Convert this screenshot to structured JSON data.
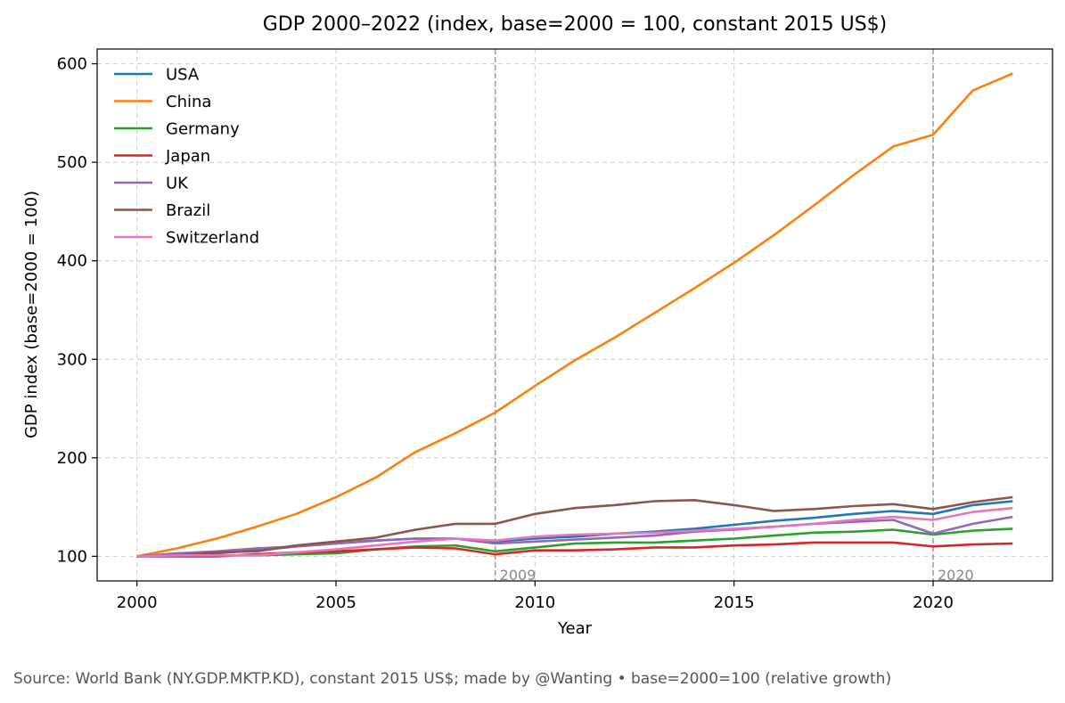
{
  "chart_data": {
    "type": "line",
    "title": "GDP 2000–2022 (index, base=2000 = 100, constant 2015 US$)",
    "xlabel": "Year",
    "ylabel": "GDP index (base=2000 = 100)",
    "xlim": [
      1999,
      2023
    ],
    "ylim": [
      75,
      615
    ],
    "x_ticks": [
      2000,
      2005,
      2010,
      2015,
      2020
    ],
    "y_ticks": [
      100,
      200,
      300,
      400,
      500,
      600
    ],
    "grid": true,
    "legend_position": "top-left",
    "x": [
      2000,
      2001,
      2002,
      2003,
      2004,
      2005,
      2006,
      2007,
      2008,
      2009,
      2010,
      2011,
      2012,
      2013,
      2014,
      2015,
      2016,
      2017,
      2018,
      2019,
      2020,
      2021,
      2022
    ],
    "series": [
      {
        "name": "USA",
        "color": "#1f77b4",
        "values": [
          100,
          101,
          103,
          106,
          110,
          113,
          116,
          118,
          118,
          115,
          118,
          120,
          123,
          125,
          128,
          132,
          136,
          139,
          143,
          146,
          143,
          152,
          156
        ]
      },
      {
        "name": "China",
        "color": "#ff7f0e",
        "values": [
          100,
          108,
          118,
          130,
          143,
          160,
          180,
          206,
          225,
          246,
          273,
          299,
          322,
          347,
          372,
          398,
          426,
          456,
          487,
          516,
          528,
          573,
          590
        ]
      },
      {
        "name": "Germany",
        "color": "#2ca02c",
        "values": [
          100,
          101,
          101,
          101,
          102,
          103,
          107,
          110,
          111,
          105,
          109,
          113,
          114,
          114,
          116,
          118,
          121,
          124,
          125,
          127,
          122,
          126,
          128
        ]
      },
      {
        "name": "Japan",
        "color": "#d62728",
        "values": [
          100,
          100,
          100,
          102,
          104,
          105,
          107,
          109,
          108,
          102,
          106,
          106,
          107,
          109,
          109,
          111,
          112,
          114,
          114,
          114,
          110,
          112,
          113
        ]
      },
      {
        "name": "UK",
        "color": "#9467bd",
        "values": [
          100,
          103,
          105,
          108,
          110,
          113,
          116,
          118,
          118,
          113,
          115,
          117,
          119,
          121,
          125,
          127,
          130,
          133,
          135,
          137,
          123,
          133,
          140
        ]
      },
      {
        "name": "Brazil",
        "color": "#8c564b",
        "values": [
          100,
          101,
          104,
          105,
          111,
          115,
          119,
          127,
          133,
          133,
          143,
          149,
          152,
          156,
          157,
          152,
          146,
          148,
          151,
          153,
          148,
          155,
          160
        ]
      },
      {
        "name": "Switzerland",
        "color": "#e377c2",
        "values": [
          100,
          101,
          101,
          101,
          104,
          107,
          111,
          115,
          118,
          116,
          120,
          122,
          123,
          124,
          126,
          128,
          130,
          133,
          137,
          140,
          137,
          145,
          149
        ]
      }
    ],
    "vlines": [
      {
        "x": 2009,
        "label": "2009"
      },
      {
        "x": 2020,
        "label": "2020"
      }
    ]
  },
  "source_note": "Source: World Bank (NY.GDP.MKTP.KD), constant 2015 US$; made by @Wanting • base=2000=100 (relative growth)"
}
